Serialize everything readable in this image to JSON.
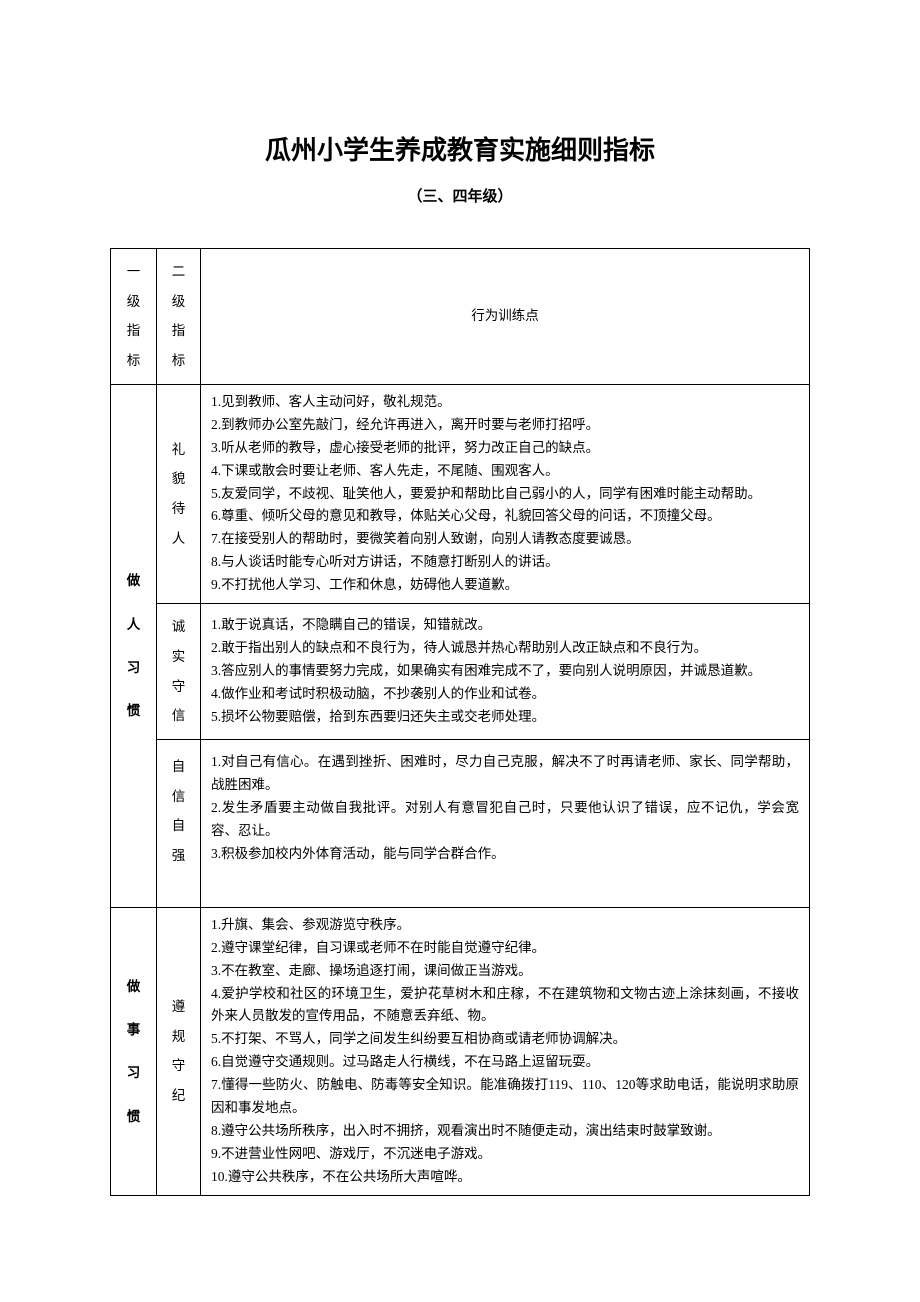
{
  "title": "瓜州小学生养成教育实施细则指标",
  "subtitle": "（三、四年级）",
  "headers": {
    "level1": "一级指标",
    "level2": "二级指标",
    "points": "行为训练点"
  },
  "sections": [
    {
      "level1": "做人习惯",
      "rows": [
        {
          "level2": "礼貌待人",
          "lines": [
            "1.见到教师、客人主动问好，敬礼规范。",
            "2.到教师办公室先敲门，经允许再进入，离开时要与老师打招呼。",
            "3.听从老师的教导，虚心接受老师的批评，努力改正自己的缺点。",
            "4.下课或散会时要让老师、客人先走，不尾随、围观客人。",
            "5.友爱同学，不歧视、耻笑他人，要爱护和帮助比自己弱小的人，同学有困难时能主动帮助。",
            "6.尊重、倾听父母的意见和教导，体贴关心父母，礼貌回答父母的问话，不顶撞父母。",
            "7.在接受别人的帮助时，要微笑着向别人致谢，向别人请教态度要诚恳。",
            "8.与人谈话时能专心听对方讲话，不随意打断别人的讲话。",
            "9.不打扰他人学习、工作和休息，妨碍他人要道歉。"
          ]
        },
        {
          "level2": "诚实守信",
          "lines": [
            "1.敢于说真话，不隐瞒自己的错误，知错就改。",
            "2.敢于指出别人的缺点和不良行为，待人诚恳并热心帮助别人改正缺点和不良行为。",
            "3.答应别人的事情要努力完成，如果确实有困难完成不了，要向别人说明原因，并诚恳道歉。",
            "4.做作业和考试时积极动脑，不抄袭别人的作业和试卷。",
            "5.损坏公物要赔偿，拾到东西要归还失主或交老师处理。"
          ]
        },
        {
          "level2": "自信自强",
          "lines": [
            "1.对自己有信心。在遇到挫折、困难时，尽力自己克服，解决不了时再请老师、家长、同学帮助，战胜困难。",
            "2.发生矛盾要主动做自我批评。对别人有意冒犯自己时，只要他认识了错误，应不记仇，学会宽容、忍让。",
            "3.积极参加校内外体育活动，能与同学合群合作。"
          ]
        }
      ]
    },
    {
      "level1": "做事习惯",
      "rows": [
        {
          "level2": "遵规守纪",
          "lines": [
            "1.升旗、集会、参观游览守秩序。",
            "2.遵守课堂纪律，自习课或老师不在时能自觉遵守纪律。",
            "3.不在教室、走廊、操场追逐打闹，课间做正当游戏。",
            "4.爱护学校和社区的环境卫生，爱护花草树木和庄稼，不在建筑物和文物古迹上涂抹刻画，不接收外来人员散发的宣传用品，不随意丢弃纸、物。",
            "5.不打架、不骂人，同学之间发生纠纷要互相协商或请老师协调解决。",
            "6.自觉遵守交通规则。过马路走人行横线，不在马路上逗留玩耍。",
            "7.懂得一些防火、防触电、防毒等安全知识。能准确拨打119、110、120等求助电话，能说明求助原因和事发地点。",
            "8.遵守公共场所秩序，出入时不拥挤，观看演出时不随便走动，演出结束时鼓掌致谢。",
            "9.不进营业性网吧、游戏厅，不沉迷电子游戏。",
            "10.遵守公共秩序，不在公共场所大声喧哗。"
          ]
        }
      ]
    }
  ],
  "colors": {
    "background": "#ffffff",
    "text": "#000000",
    "border": "#000000"
  }
}
